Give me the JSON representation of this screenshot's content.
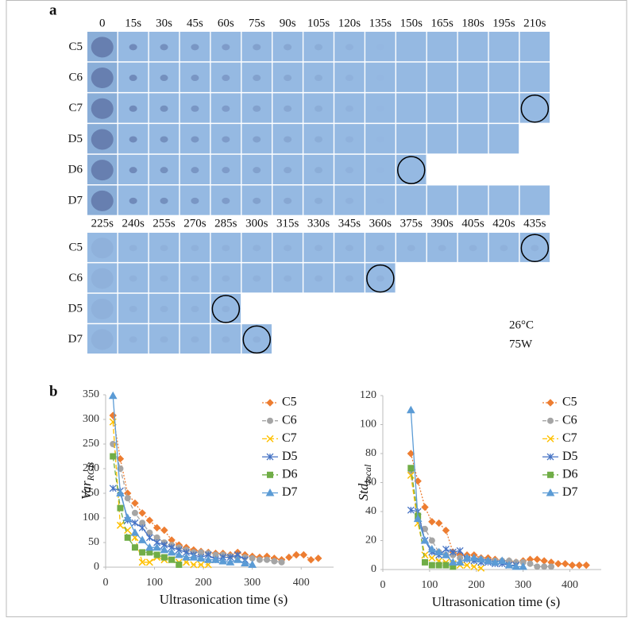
{
  "panel_a": {
    "label": "a",
    "section_1": {
      "times": [
        "0",
        "15s",
        "30s",
        "45s",
        "60s",
        "75s",
        "90s",
        "105s",
        "120s",
        "135s",
        "150s",
        "165s",
        "180s",
        "195s",
        "210s"
      ],
      "rows": [
        "C5",
        "C6",
        "C7",
        "D5",
        "D6",
        "D7"
      ]
    },
    "section_2": {
      "times": [
        "225s",
        "240s",
        "255s",
        "270s",
        "285s",
        "300s",
        "315s",
        "330s",
        "345s",
        "360s",
        "375s",
        "390s",
        "405s",
        "420s",
        "435s"
      ],
      "rows": [
        "C5",
        "C6",
        "D5",
        "D7"
      ]
    },
    "temperature": "26°C",
    "power": "75W"
  },
  "panel_b": {
    "label": "b"
  },
  "chart_data": [
    {
      "type": "line",
      "ylabel": "Var",
      "ylabel_sub": "RGB",
      "xlabel": "Ultrasonication time (s)",
      "xlim": [
        0,
        450
      ],
      "xticks": [
        0,
        100,
        200,
        300,
        400
      ],
      "ylim": [
        0,
        350
      ],
      "yticks": [
        0,
        50,
        100,
        150,
        200,
        250,
        300,
        350
      ],
      "series": [
        {
          "name": "C5",
          "color": "#ed7d31",
          "marker": "diamond",
          "dash": "2,2",
          "x": [
            15,
            30,
            45,
            60,
            75,
            90,
            105,
            120,
            135,
            150,
            165,
            180,
            195,
            210,
            225,
            240,
            255,
            270,
            285,
            300,
            315,
            330,
            345,
            360,
            375,
            390,
            405,
            420,
            435
          ],
          "values": [
            308,
            220,
            150,
            130,
            110,
            95,
            80,
            75,
            55,
            45,
            40,
            35,
            32,
            30,
            28,
            28,
            25,
            30,
            25,
            22,
            20,
            22,
            18,
            15,
            20,
            25,
            25,
            15,
            18
          ]
        },
        {
          "name": "C6",
          "color": "#a5a5a5",
          "marker": "circle",
          "dash": "5,3",
          "x": [
            15,
            30,
            45,
            60,
            75,
            90,
            105,
            120,
            135,
            150,
            165,
            180,
            195,
            210,
            225,
            240,
            255,
            270,
            285,
            300,
            315,
            330,
            345,
            360
          ],
          "values": [
            250,
            200,
            140,
            110,
            90,
            70,
            60,
            50,
            45,
            40,
            35,
            30,
            30,
            28,
            25,
            25,
            22,
            20,
            20,
            18,
            15,
            15,
            12,
            10
          ]
        },
        {
          "name": "C7",
          "color": "#ffc000",
          "marker": "x",
          "dash": "6,3",
          "x": [
            15,
            30,
            45,
            60,
            75,
            90,
            105,
            120,
            135,
            150,
            165,
            180,
            195,
            210
          ],
          "values": [
            295,
            85,
            75,
            60,
            10,
            10,
            20,
            15,
            15,
            10,
            10,
            5,
            5,
            5
          ]
        },
        {
          "name": "D5",
          "color": "#4472c4",
          "marker": "star",
          "dash": "",
          "x": [
            15,
            30,
            45,
            60,
            75,
            90,
            105,
            120,
            135,
            150,
            165,
            180,
            195,
            210,
            225,
            240,
            255,
            270,
            285
          ],
          "values": [
            160,
            155,
            95,
            90,
            80,
            60,
            50,
            45,
            40,
            35,
            30,
            25,
            20,
            25,
            15,
            20,
            20,
            25,
            15
          ]
        },
        {
          "name": "D6",
          "color": "#70ad47",
          "marker": "square",
          "dash": "6,3",
          "x": [
            15,
            30,
            45,
            60,
            75,
            90,
            105,
            120,
            135,
            150
          ],
          "values": [
            225,
            120,
            60,
            40,
            30,
            30,
            25,
            20,
            15,
            5
          ]
        },
        {
          "name": "D7",
          "color": "#5b9bd5",
          "marker": "triangle",
          "dash": "",
          "x": [
            15,
            30,
            45,
            60,
            75,
            90,
            105,
            120,
            135,
            150,
            165,
            180,
            195,
            210,
            225,
            240,
            255,
            270,
            285,
            300
          ],
          "values": [
            348,
            150,
            100,
            70,
            55,
            40,
            40,
            35,
            30,
            25,
            20,
            20,
            18,
            15,
            15,
            12,
            10,
            15,
            8,
            5
          ]
        }
      ]
    },
    {
      "type": "line",
      "ylabel": "Std",
      "ylabel_sub": "local",
      "xlabel": "Ultrasonication time (s)",
      "xlim": [
        0,
        450
      ],
      "xticks": [
        0,
        100,
        200,
        300,
        400
      ],
      "ylim": [
        0,
        120
      ],
      "yticks": [
        0,
        20,
        40,
        60,
        80,
        100,
        120
      ],
      "series": [
        {
          "name": "C5",
          "color": "#ed7d31",
          "marker": "diamond",
          "dash": "2,2",
          "x": [
            60,
            75,
            90,
            105,
            120,
            135,
            150,
            165,
            180,
            195,
            210,
            225,
            240,
            255,
            270,
            285,
            300,
            315,
            330,
            345,
            360,
            375,
            390,
            405,
            420,
            435
          ],
          "values": [
            80,
            61,
            43,
            33,
            32,
            27,
            12,
            10,
            10,
            10,
            8,
            8,
            7,
            6,
            6,
            5,
            6,
            7,
            7,
            6,
            5,
            4,
            4,
            3,
            3,
            3
          ]
        },
        {
          "name": "C6",
          "color": "#a5a5a5",
          "marker": "circle",
          "dash": "5,3",
          "x": [
            60,
            75,
            90,
            105,
            120,
            135,
            150,
            165,
            180,
            195,
            210,
            225,
            240,
            255,
            270,
            285,
            300,
            315,
            330,
            345,
            360
          ],
          "values": [
            68,
            35,
            28,
            20,
            12,
            10,
            10,
            8,
            8,
            7,
            7,
            6,
            6,
            6,
            6,
            5,
            5,
            4,
            2,
            2,
            2
          ]
        },
        {
          "name": "C7",
          "color": "#ffc000",
          "marker": "x",
          "dash": "6,3",
          "x": [
            60,
            75,
            90,
            105,
            120,
            135,
            150,
            165,
            180,
            195,
            210
          ],
          "values": [
            65,
            32,
            10,
            8,
            6,
            5,
            4,
            3,
            3,
            2,
            1
          ]
        },
        {
          "name": "D5",
          "color": "#4472c4",
          "marker": "star",
          "dash": "",
          "x": [
            60,
            75,
            90,
            105,
            120,
            135,
            150,
            165,
            180,
            195,
            210,
            225,
            240,
            255,
            270,
            285
          ],
          "values": [
            41,
            40,
            20,
            12,
            10,
            14,
            12,
            13,
            7,
            6,
            5,
            5,
            4,
            4,
            3,
            3
          ]
        },
        {
          "name": "D6",
          "color": "#70ad47",
          "marker": "square",
          "dash": "6,3",
          "x": [
            60,
            75,
            90,
            105,
            120,
            135,
            150
          ],
          "values": [
            70,
            37,
            5,
            3,
            3,
            3,
            2
          ]
        },
        {
          "name": "D7",
          "color": "#5b9bd5",
          "marker": "triangle",
          "dash": "",
          "x": [
            60,
            75,
            90,
            105,
            120,
            135,
            150,
            165,
            180,
            195,
            210,
            225,
            240,
            255,
            270,
            285,
            300
          ],
          "values": [
            110,
            35,
            20,
            14,
            12,
            10,
            5,
            5,
            8,
            8,
            7,
            6,
            5,
            6,
            3,
            2,
            2
          ]
        }
      ]
    }
  ]
}
